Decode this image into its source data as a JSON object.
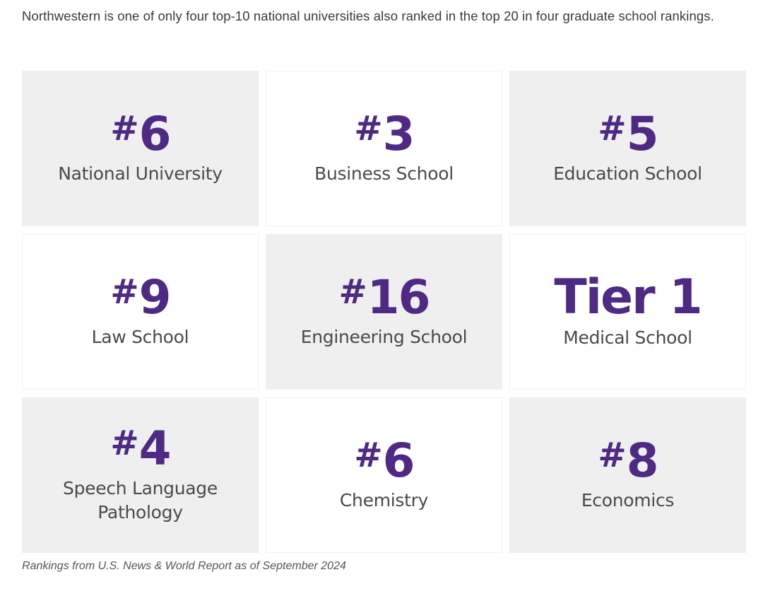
{
  "intro_text": "Northwestern is one of only four top-10 national universities also ranked in the top 20 in four graduate school rankings.",
  "accent_color": "#4e2a84",
  "rankings": [
    {
      "hash": "#",
      "rank": "6",
      "label": "National University"
    },
    {
      "hash": "#",
      "rank": "3",
      "label": "Business School"
    },
    {
      "hash": "#",
      "rank": "5",
      "label": "Education School"
    },
    {
      "hash": "#",
      "rank": "9",
      "label": "Law School"
    },
    {
      "hash": "#",
      "rank": "16",
      "label": "Engineering School"
    },
    {
      "hash": "",
      "rank": "Tier 1",
      "label": "Medical School"
    },
    {
      "hash": "#",
      "rank": "4",
      "label": "Speech Language Pathology"
    },
    {
      "hash": "#",
      "rank": "6",
      "label": "Chemistry"
    },
    {
      "hash": "#",
      "rank": "8",
      "label": "Economics"
    }
  ],
  "footnote": "Rankings from U.S. News & World Report as of September 2024"
}
